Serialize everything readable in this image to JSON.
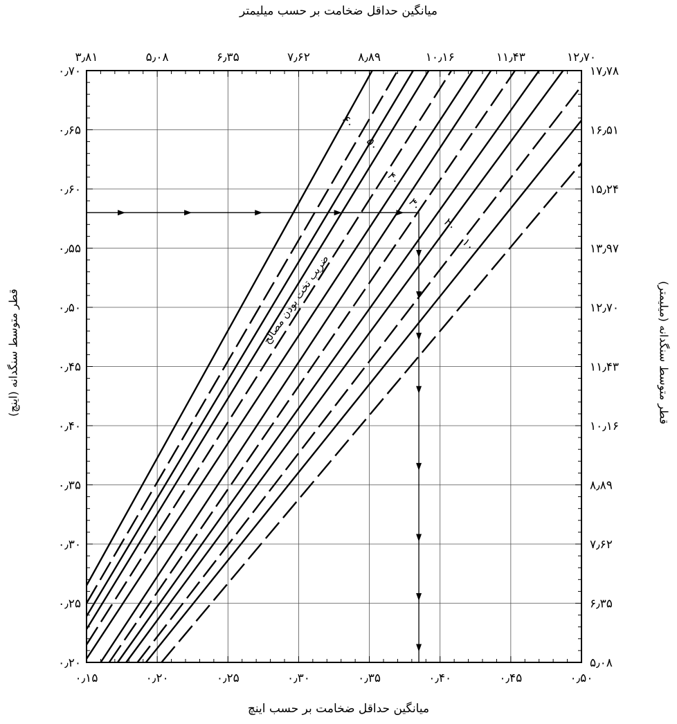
{
  "chart_data": {
    "type": "line",
    "title_top": "میانگین حداقل ضخامت بر حسب میلیمتر",
    "xlabel": "میانگین حداقل ضخامت بر حسب اینچ",
    "ylabel_left": "قطر متوسط سنگدانه (اینچ)",
    "ylabel_right": "قطر متوسط سنگدانه (میلیمتر)",
    "curve_label": "ضریب تخت بودن مصالح",
    "xlim": [
      0.15,
      0.5
    ],
    "ylim": [
      0.2,
      0.7
    ],
    "x_ticks": [
      "۰٫۱۵",
      "۰٫۲۰",
      "۰٫۲۵",
      "۰٫۳۰",
      "۰٫۳۵",
      "۰٫۴۰",
      "۰٫۴۵",
      "۰٫۵۰"
    ],
    "x_ticks_top": [
      "۳٫۸۱",
      "۵٫۰۸",
      "۶٫۳۵",
      "۷٫۶۲",
      "۸٫۸۹",
      "۱۰٫۱۶",
      "۱۱٫۴۳",
      "۱۲٫۷۰"
    ],
    "y_ticks_left": [
      "۰٫۲۰",
      "۰٫۲۵",
      "۰٫۳۰",
      "۰٫۳۵",
      "۰٫۴۰",
      "۰٫۴۵",
      "۰٫۵۰",
      "۰٫۵۵",
      "۰٫۶۰",
      "۰٫۶۵",
      "۰٫۷۰"
    ],
    "y_ticks_right": [
      "۵٫۰۸",
      "۶٫۳۵",
      "۷٫۶۲",
      "۸٫۸۹",
      "۱۰٫۱۶",
      "۱۱٫۴۳",
      "۱۲٫۷۰",
      "۱۳٫۹۷",
      "۱۵٫۲۴",
      "۱۶٫۵۱",
      "۱۷٫۷۸"
    ],
    "grid": true,
    "series": [
      {
        "name": "۶۰",
        "dashed": false,
        "points": [
          [
            0.15,
            0.265
          ],
          [
            0.352,
            0.7
          ]
        ]
      },
      {
        "name": "۵۰",
        "dashed": true,
        "points": [
          [
            0.15,
            0.25
          ],
          [
            0.37,
            0.7
          ]
        ]
      },
      {
        "name": "",
        "dashed": false,
        "points": [
          [
            0.15,
            0.239
          ],
          [
            0.381,
            0.7
          ]
        ]
      },
      {
        "name": "۴۰",
        "dashed": false,
        "points": [
          [
            0.15,
            0.228
          ],
          [
            0.392,
            0.7
          ]
        ]
      },
      {
        "name": "",
        "dashed": true,
        "points": [
          [
            0.15,
            0.215
          ],
          [
            0.408,
            0.7
          ]
        ]
      },
      {
        "name": "۳۰",
        "dashed": false,
        "points": [
          [
            0.15,
            0.203
          ],
          [
            0.423,
            0.7
          ]
        ]
      },
      {
        "name": "",
        "dashed": false,
        "points": [
          [
            0.16,
            0.2
          ],
          [
            0.436,
            0.7
          ]
        ]
      },
      {
        "name": "",
        "dashed": true,
        "points": [
          [
            0.166,
            0.2
          ],
          [
            0.453,
            0.7
          ]
        ]
      },
      {
        "name": "۲۰",
        "dashed": false,
        "points": [
          [
            0.172,
            0.2
          ],
          [
            0.47,
            0.7
          ]
        ]
      },
      {
        "name": "",
        "dashed": false,
        "points": [
          [
            0.178,
            0.2
          ],
          [
            0.487,
            0.7
          ]
        ]
      },
      {
        "name": "",
        "dashed": true,
        "points": [
          [
            0.186,
            0.2
          ],
          [
            0.5,
            0.687
          ]
        ]
      },
      {
        "name": "",
        "dashed": false,
        "points": [
          [
            0.192,
            0.2
          ],
          [
            0.5,
            0.658
          ]
        ]
      },
      {
        "name": "۱۰",
        "dashed": true,
        "points": [
          [
            0.203,
            0.2
          ],
          [
            0.5,
            0.622
          ]
        ]
      }
    ],
    "series_label_positions": [
      {
        "name": "۶۰",
        "x": 0.333,
        "y": 0.655,
        "rotate": 56
      },
      {
        "name": "۵۰",
        "x": 0.35,
        "y": 0.636,
        "rotate": 56
      },
      {
        "name": "۴۰",
        "x": 0.365,
        "y": 0.607,
        "rotate": 53
      },
      {
        "name": "۳۰",
        "x": 0.38,
        "y": 0.585,
        "rotate": 53
      },
      {
        "name": "۲۰",
        "x": 0.405,
        "y": 0.568,
        "rotate": 50
      },
      {
        "name": "۱۰",
        "x": 0.418,
        "y": 0.551,
        "rotate": 50
      }
    ],
    "curve_label_position": {
      "x": 0.3,
      "y": 0.505,
      "rotate": -55
    },
    "guide_path": {
      "points": [
        [
          0.15,
          0.58
        ],
        [
          0.385,
          0.58
        ],
        [
          0.385,
          0.2
        ]
      ],
      "arrows_h": [
        0.175,
        0.222,
        0.272,
        0.328,
        0.372
      ],
      "arrows_v": [
        0.545,
        0.51,
        0.475,
        0.43,
        0.365,
        0.305,
        0.255,
        0.212
      ]
    }
  }
}
